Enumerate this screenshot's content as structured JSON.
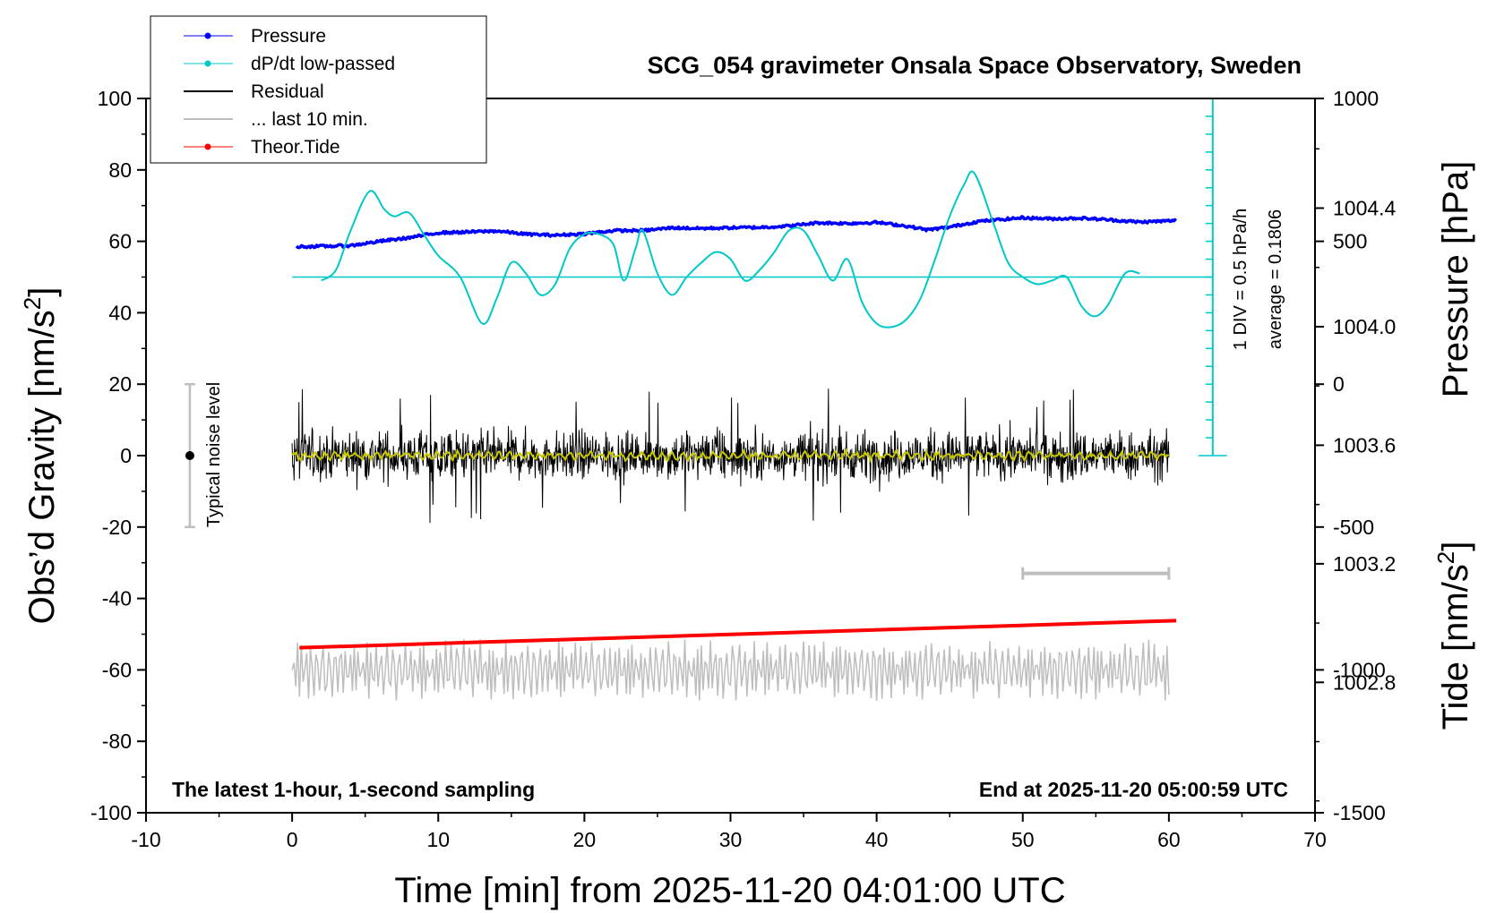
{
  "chart_data": {
    "type": "line",
    "title": "SCG_054 gravimeter Onsala Space Observatory, Sweden",
    "xlabel": "Time [min] from 2025-11-20 04:01:00 UTC",
    "ylabel_left_prefix": "Obs’d Gravity [nm/s",
    "ylabel_left_sup": "2",
    "ylabel_left_suffix": "]",
    "ylabel_right_pressure": "Pressure [hPa]",
    "ylabel_right_tide_prefix": "Tide [nm/s",
    "ylabel_right_tide_sup": "2",
    "ylabel_right_tide_suffix": "]",
    "xlim": [
      -10,
      70
    ],
    "ylim": [
      -100,
      100
    ],
    "x_ticks": [
      "-10",
      "0",
      "10",
      "20",
      "30",
      "40",
      "50",
      "60",
      "70"
    ],
    "x_tick_values": [
      -10,
      0,
      10,
      20,
      30,
      40,
      50,
      60,
      70
    ],
    "y_ticks": [
      "-100",
      "-80",
      "-60",
      "-40",
      "-20",
      "0",
      "20",
      "40",
      "60",
      "80",
      "100"
    ],
    "y_tick_values": [
      -100,
      -80,
      -60,
      -40,
      -20,
      0,
      20,
      40,
      60,
      80,
      100
    ],
    "pressure_ticks": [
      "1002.8",
      "1003.2",
      "1003.6",
      "1004.0",
      "1004.4"
    ],
    "pressure_tick_values": [
      1002.8,
      1003.2,
      1003.6,
      1004.0,
      1004.4
    ],
    "pressure_range": [
      1002.36,
      1004.77
    ],
    "tide_ticks": [
      "-1500",
      "-1000",
      "-500",
      "0",
      "500",
      "1000"
    ],
    "tide_tick_values": [
      -1500,
      -1000,
      -500,
      0,
      500,
      1000
    ],
    "tide_range": [
      -1500,
      1000
    ],
    "legend": [
      {
        "label": "Pressure",
        "color": "#0000ff",
        "marker": true
      },
      {
        "label": "dP/dt low-passed",
        "color": "#00c8c8",
        "marker": true
      },
      {
        "label": "Residual",
        "color": "#000000",
        "marker": false
      },
      {
        "label": "... last 10 min.",
        "color": "#bebebe",
        "marker": false
      },
      {
        "label": "Theor.Tide",
        "color": "#ff0000",
        "marker": true
      }
    ],
    "notes": {
      "left_bottom": "The latest 1-hour, 1-second sampling",
      "right_bottom": "End at 2025-11-20 05:00:59 UTC",
      "noise_label": "Typical noise level",
      "div_label": "1 DIV = 0.5 hPa/h",
      "average_label": "average = 0.1806"
    },
    "noise_bar": {
      "x": -7,
      "center": 0,
      "half_range": 20
    },
    "last10_bar": {
      "from": 50,
      "to": 60,
      "y": -33
    },
    "dpdt_scale": {
      "x": 63,
      "zero_y": 50,
      "div_y": 5,
      "bottom_y": 0,
      "top_y": 100
    },
    "series": [
      {
        "name": "Pressure",
        "color": "#0000ff",
        "unit": "y",
        "x": [
          0.3,
          2,
          4,
          6,
          8,
          10,
          12,
          14,
          16,
          18,
          20,
          22,
          24,
          26,
          28,
          30,
          32,
          34,
          36,
          38,
          40,
          42,
          43.5,
          45,
          47,
          50,
          52,
          54,
          56,
          58,
          60.5
        ],
        "values": [
          58.5,
          58.6,
          58.8,
          60,
          61,
          62.4,
          62.6,
          62.9,
          62,
          61.7,
          62.1,
          63,
          63,
          63.8,
          63.6,
          63.8,
          63.9,
          64.3,
          65.2,
          65,
          65.3,
          64.3,
          63.2,
          64,
          65.6,
          66.6,
          66.3,
          66.5,
          66,
          65.4,
          65.8
        ]
      },
      {
        "name": "dP/dt low-passed",
        "color": "#00c8c8",
        "unit": "y",
        "x": [
          2,
          3,
          4,
          5.3,
          6.3,
          7,
          8,
          9,
          10,
          11.5,
          13,
          14,
          15,
          16,
          17,
          18,
          19,
          20,
          21,
          22,
          22.7,
          23.5,
          24,
          25,
          26,
          27,
          28,
          29,
          30,
          31,
          32,
          33,
          34,
          35,
          36,
          37,
          38,
          39,
          40,
          41,
          42,
          43,
          44,
          45,
          46,
          46.7,
          48,
          49,
          50,
          51,
          52,
          53,
          54,
          54.9,
          55.8,
          57,
          58
        ],
        "values": [
          49,
          52,
          63,
          74,
          69,
          67,
          68,
          62,
          56,
          50,
          37,
          44,
          54,
          51,
          45,
          48,
          58,
          62,
          62,
          59,
          49,
          58,
          63,
          51,
          45,
          50,
          54,
          57,
          55,
          49,
          52,
          57,
          63,
          63,
          56,
          49,
          55,
          43,
          37,
          36,
          38,
          44,
          55,
          67,
          76,
          79,
          65,
          54,
          50,
          48,
          49,
          50,
          42,
          39,
          42,
          51,
          51
        ]
      },
      {
        "name": "Theor.Tide",
        "color": "#ff0000",
        "unit": "y",
        "x": [
          0.5,
          60.5
        ],
        "values": [
          -53.8,
          -46.2
        ]
      }
    ],
    "residual": {
      "name": "Residual",
      "color": "#000000",
      "x_start": 0,
      "x_end": 60,
      "typical_amplitude": 8,
      "max_amplitude": 19
    },
    "residual_smooth": {
      "name": "Residual smoothed",
      "color": "#c8c800"
    },
    "last10": {
      "name": "... last 10 min.",
      "color": "#bebebe",
      "x_start": 0,
      "x_end": 60,
      "center": -60,
      "amplitude": 8
    }
  }
}
